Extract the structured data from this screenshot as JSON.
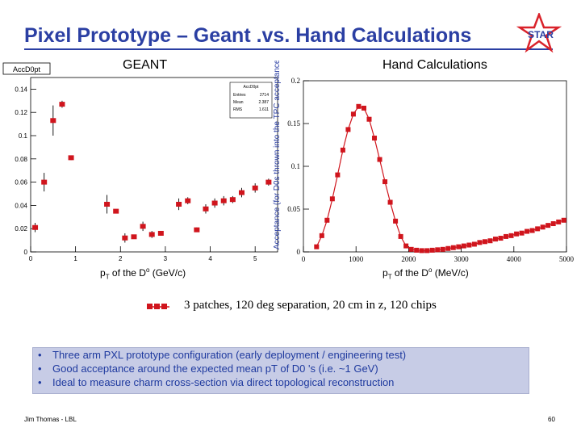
{
  "slide": {
    "title": "Pixel Prototype – Geant .vs. Hand Calculations",
    "logo_text": "STAR",
    "footer_left": "Jim Thomas - LBL",
    "footer_right": "60",
    "legend_text": "3 patches, 120 deg separation, 20 cm in z, 120 chips",
    "bullets": [
      "Three arm PXL prototype configuration (early deployment / engineering test)",
      "Good acceptance around the expected mean pT of D0 's (i.e. ~1 GeV)",
      "Ideal to measure charm cross-section via direct topological reconstruction"
    ]
  },
  "left_panel": {
    "label": "GEANT",
    "histo_name": "AccD0pt",
    "stats": {
      "name": "AccD0pt",
      "rows": [
        {
          "k": "Entries",
          "v": "2714"
        },
        {
          "k": "Mean",
          "v": "2.387"
        },
        {
          "k": "RMS",
          "v": "1.611"
        }
      ]
    },
    "xlabel": "pT of the D0 (GeV/c)"
  },
  "right_panel": {
    "label": "Hand Calculations",
    "ylabel": "Acceptance  (for D0s thrown into the TPC acceptance)",
    "xlabel": "pT of the D0 (MeV/c)"
  },
  "chart_data": [
    {
      "type": "scatter",
      "title": "AccD0pt",
      "xlim": [
        0,
        5.5
      ],
      "ylim": [
        0,
        0.15
      ],
      "x_ticks": [
        0,
        1,
        2,
        3,
        4,
        5
      ],
      "y_ticks": [
        0,
        0.02,
        0.04,
        0.06,
        0.08,
        0.1,
        0.12,
        0.14
      ],
      "x_tick_labels": [
        "0",
        "1",
        "2",
        "3",
        "4",
        "5"
      ],
      "y_tick_labels": [
        "0",
        "0.02",
        "0.04",
        "0.06",
        "0.08",
        "0.1",
        "0.12",
        "0.14"
      ],
      "points": [
        {
          "x": 0.1,
          "y": 0.021,
          "e": 0.004
        },
        {
          "x": 0.3,
          "y": 0.06,
          "e": 0.008
        },
        {
          "x": 0.5,
          "y": 0.113,
          "e": 0.013
        },
        {
          "x": 0.7,
          "y": 0.127,
          "e": 0.003
        },
        {
          "x": 0.9,
          "y": 0.081,
          "e": 0.002
        },
        {
          "x": 1.7,
          "y": 0.041,
          "e": 0.008
        },
        {
          "x": 1.9,
          "y": 0.035,
          "e": 0.001
        },
        {
          "x": 2.1,
          "y": 0.012,
          "e": 0.004
        },
        {
          "x": 2.3,
          "y": 0.013,
          "e": 0.001
        },
        {
          "x": 2.5,
          "y": 0.022,
          "e": 0.004
        },
        {
          "x": 2.7,
          "y": 0.015,
          "e": 0.003
        },
        {
          "x": 2.9,
          "y": 0.016,
          "e": 0.002
        },
        {
          "x": 3.3,
          "y": 0.041,
          "e": 0.005
        },
        {
          "x": 3.5,
          "y": 0.044,
          "e": 0.003
        },
        {
          "x": 3.7,
          "y": 0.019,
          "e": 0.002
        },
        {
          "x": 3.9,
          "y": 0.037,
          "e": 0.004
        },
        {
          "x": 4.1,
          "y": 0.042,
          "e": 0.004
        },
        {
          "x": 4.3,
          "y": 0.044,
          "e": 0.004
        },
        {
          "x": 4.5,
          "y": 0.045,
          "e": 0.003
        },
        {
          "x": 4.7,
          "y": 0.051,
          "e": 0.004
        },
        {
          "x": 5.0,
          "y": 0.055,
          "e": 0.004
        },
        {
          "x": 5.3,
          "y": 0.06,
          "e": 0.003
        }
      ]
    },
    {
      "type": "line",
      "xlim": [
        0,
        5000
      ],
      "ylim": [
        0,
        0.2
      ],
      "x_ticks": [
        0,
        1000,
        2000,
        3000,
        4000,
        5000
      ],
      "y_ticks": [
        0,
        0.05,
        0.1,
        0.15,
        0.2
      ],
      "x_tick_labels": [
        "0",
        "1000",
        "2000",
        "3000",
        "4000",
        "5000"
      ],
      "y_tick_labels": [
        "0",
        "0.05",
        "0.1",
        "0.15",
        "0.2"
      ],
      "series": [
        {
          "name": "3 patches, 120 deg separation, 20 cm in z, 120 chips",
          "x": [
            250,
            350,
            450,
            550,
            650,
            750,
            850,
            950,
            1050,
            1150,
            1250,
            1350,
            1450,
            1550,
            1650,
            1750,
            1850,
            1950,
            2050,
            2150,
            2250,
            2350,
            2450,
            2550,
            2650,
            2750,
            2850,
            2950,
            3050,
            3150,
            3250,
            3350,
            3450,
            3550,
            3650,
            3750,
            3850,
            3950,
            4050,
            4150,
            4250,
            4350,
            4450,
            4550,
            4650,
            4750,
            4850,
            4950
          ],
          "y": [
            0.006,
            0.019,
            0.037,
            0.062,
            0.09,
            0.119,
            0.143,
            0.161,
            0.17,
            0.168,
            0.155,
            0.133,
            0.108,
            0.082,
            0.058,
            0.036,
            0.018,
            0.007,
            0.003,
            0.002,
            0.0015,
            0.0015,
            0.002,
            0.0025,
            0.003,
            0.004,
            0.005,
            0.006,
            0.007,
            0.008,
            0.009,
            0.011,
            0.012,
            0.013,
            0.015,
            0.016,
            0.018,
            0.019,
            0.021,
            0.022,
            0.024,
            0.025,
            0.027,
            0.029,
            0.031,
            0.033,
            0.035,
            0.037
          ]
        }
      ]
    }
  ]
}
